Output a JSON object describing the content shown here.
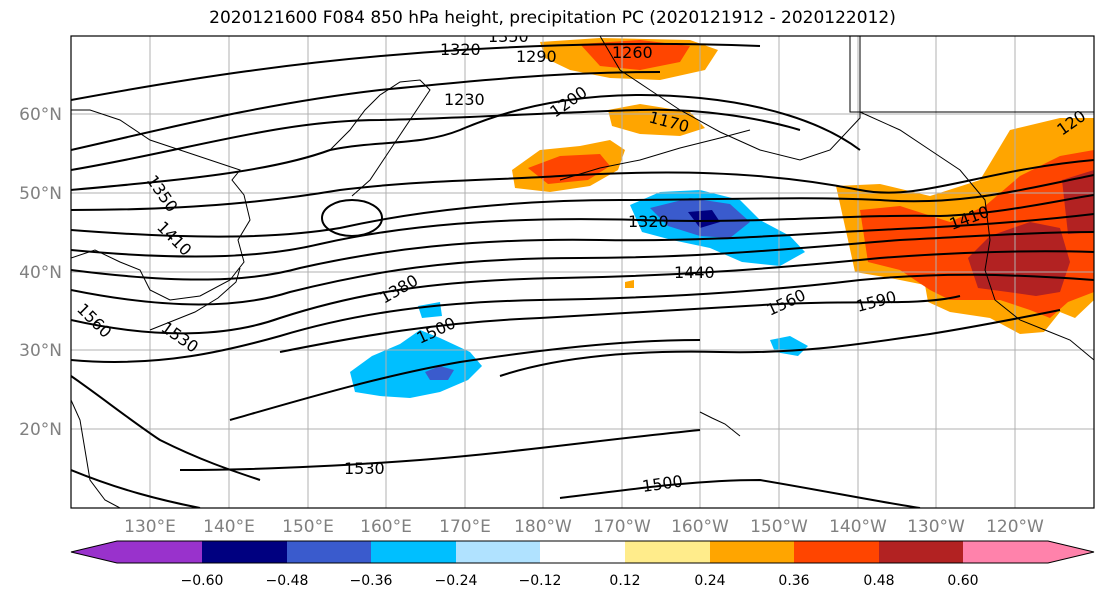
{
  "title": "2020121600 F084 850 hPa height, precipitation PC (2020121912 - 2020122012)",
  "axes": {
    "lat_labels": [
      "60°N",
      "50°N",
      "40°N",
      "30°N",
      "20°N"
    ],
    "lon_labels": [
      "130°E",
      "140°E",
      "150°E",
      "160°E",
      "170°E",
      "180°W",
      "170°W",
      "160°W",
      "150°W",
      "140°W",
      "130°W",
      "120°W"
    ]
  },
  "contour_labels": [
    "1320",
    "1350",
    "1290",
    "1260",
    "1230",
    "1200",
    "1170",
    "1350",
    "1410",
    "1320",
    "1410",
    "1440",
    "1380",
    "1560",
    "1590",
    "1530",
    "1500",
    "1560",
    "1530",
    "1500",
    "120"
  ],
  "colorbar": {
    "colors": [
      "#9932cc",
      "#000080",
      "#3a5bcd",
      "#00bfff",
      "#b0e2ff",
      "#ffffff",
      "#ffec8b",
      "#ffa500",
      "#ff4500",
      "#b22222",
      "#ff82ab"
    ],
    "tick_labels": [
      "−0.60",
      "−0.48",
      "−0.36",
      "−0.24",
      "−0.12",
      "0.12",
      "0.24",
      "0.36",
      "0.48",
      "0.60"
    ]
  },
  "colors": {
    "coast": "#000000",
    "grid": "#b0b0b0",
    "axis_label": "#808080"
  }
}
